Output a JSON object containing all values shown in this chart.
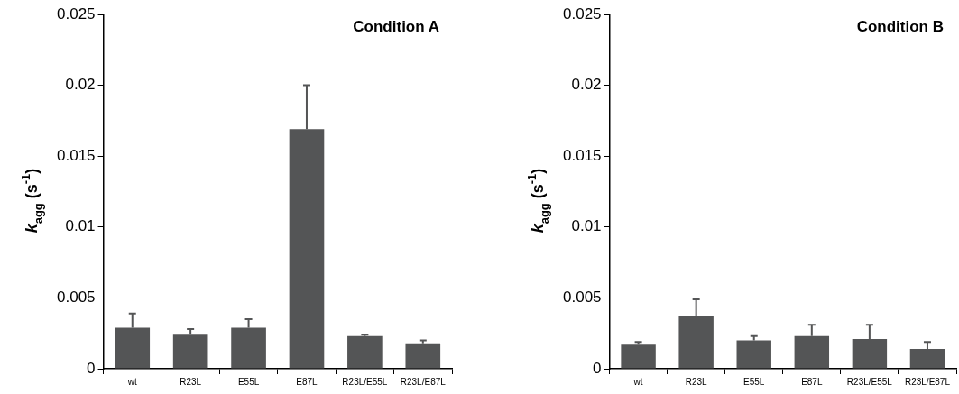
{
  "chart_data": [
    {
      "type": "bar",
      "title": "Condition A",
      "ylabel": "k$_{agg}$ (s$^{-1}$)",
      "categories": [
        "wt",
        "R23L",
        "E55L",
        "E87L",
        "R23L/E55L",
        "R23L/E87L"
      ],
      "values": [
        0.0029,
        0.0024,
        0.0029,
        0.0169,
        0.0023,
        0.0018
      ],
      "errors": [
        [
          0.0029,
          0.0039
        ],
        [
          0.0024,
          0.0028
        ],
        [
          0.0029,
          0.0035
        ],
        [
          0.0169,
          0.02
        ],
        [
          0.0023,
          0.0024
        ],
        [
          0.0018,
          0.002
        ]
      ],
      "color": "#545556",
      "ylim": [
        0,
        0.025
      ],
      "yticks": [
        0,
        0.005,
        0.01,
        0.015,
        0.02,
        0.025
      ],
      "grid": false,
      "legend": false
    },
    {
      "type": "bar",
      "title": "Condition B",
      "ylabel": "k$_{agg}$ (s$^{-1}$)",
      "categories": [
        "wt",
        "R23L",
        "E55L",
        "E87L",
        "R23L/E55L",
        "R23L/E87L"
      ],
      "values": [
        0.0017,
        0.0037,
        0.002,
        0.0023,
        0.0021,
        0.0014
      ],
      "errors": [
        [
          0.0017,
          0.0019
        ],
        [
          0.0037,
          0.0049
        ],
        [
          0.002,
          0.0023
        ],
        [
          0.0023,
          0.0031
        ],
        [
          0.0021,
          0.0031
        ],
        [
          0.0014,
          0.0019
        ]
      ],
      "color": "#545556",
      "ylim": [
        0,
        0.025
      ],
      "yticks": [
        0,
        0.005,
        0.01,
        0.015,
        0.02,
        0.025
      ],
      "grid": false,
      "legend": false
    }
  ]
}
